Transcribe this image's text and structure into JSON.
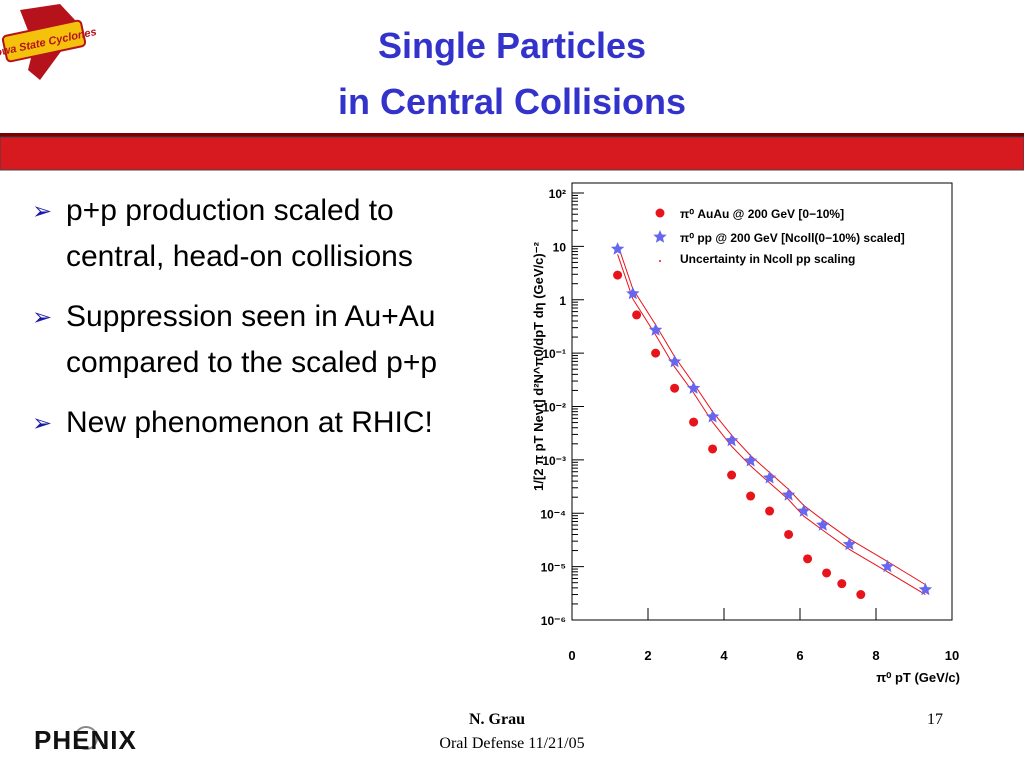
{
  "header": {
    "title_lines": [
      "Single Particles",
      "in Central Collisions"
    ],
    "logo": "Iowa State Cyclones"
  },
  "bullets": [
    "p+p production scaled to central, head-on collisions",
    "Suppression seen in Au+Au compared to the scaled p+p",
    "New phenomenon at RHIC!"
  ],
  "footer": {
    "author": "N. Grau",
    "event": "Oral Defense 11/21/05",
    "page": "17",
    "logo": "PHENIX"
  },
  "chart_data": {
    "type": "scatter",
    "xlabel": "π⁰ pT (GeV/c)",
    "ylabel": "1/[2 π pT Nevt] d²N^π0/dpT dη (GeV/c)⁻²",
    "xlim": [
      0,
      10
    ],
    "xticks": [
      0,
      2,
      4,
      6,
      8,
      10
    ],
    "ylim": [
      1e-06,
      100
    ],
    "ylog": true,
    "yticks": [
      {
        "value": 100,
        "label": "10²"
      },
      10,
      1,
      {
        "value": 0.1,
        "label": "10⁻¹"
      },
      {
        "value": 0.01,
        "label": "10⁻²"
      },
      {
        "value": 0.001,
        "label": "10⁻³"
      },
      {
        "value": 0.0001,
        "label": "10⁻⁴"
      },
      {
        "value": 1e-05,
        "label": "10⁻⁵"
      },
      {
        "value": 1e-06,
        "label": "10⁻⁶"
      }
    ],
    "series": [
      {
        "name": "π⁰ AuAu @ 200 GeV [0−10%]",
        "color": "#e8141b",
        "marker": "circle",
        "x": [
          1.2,
          1.7,
          2.2,
          2.7,
          3.2,
          3.7,
          4.2,
          4.7,
          5.2,
          5.7,
          6.2,
          6.7,
          7.1,
          7.6
        ],
        "values": [
          2.9,
          0.52,
          0.1,
          0.022,
          0.0051,
          0.0016,
          0.00052,
          0.00021,
          0.00011,
          4e-05,
          1.4e-05,
          7.6e-06,
          4.8e-06,
          3e-06
        ]
      },
      {
        "name": "π⁰ pp @ 200 GeV [Ncoll(0−10%) scaled]",
        "color": "#6666ee",
        "marker": "star",
        "x": [
          1.2,
          1.6,
          2.2,
          2.7,
          3.2,
          3.7,
          4.2,
          4.7,
          5.2,
          5.7,
          6.1,
          6.6,
          7.3,
          8.3,
          9.3
        ],
        "values": [
          8.9,
          1.3,
          0.27,
          0.069,
          0.022,
          0.0064,
          0.0023,
          0.00096,
          0.00046,
          0.00022,
          0.00011,
          6e-05,
          2.6e-05,
          1e-05,
          3.7e-06
        ]
      }
    ],
    "band": {
      "name": "Uncertainty in Ncoll pp scaling",
      "color": "#e8141b",
      "x": [
        1.2,
        1.6,
        2.2,
        2.7,
        3.2,
        3.7,
        4.2,
        4.7,
        5.2,
        5.7,
        6.1,
        6.6,
        7.3,
        8.3,
        9.3
      ],
      "upper": [
        11,
        1.6,
        0.34,
        0.086,
        0.027,
        0.008,
        0.0029,
        0.0012,
        0.00058,
        0.00028,
        0.00014,
        7.5e-05,
        3.3e-05,
        1.25e-05,
        4.6e-06
      ],
      "lower": [
        7.1,
        1.04,
        0.22,
        0.055,
        0.018,
        0.0051,
        0.0018,
        0.00077,
        0.00037,
        0.00018,
        8.8e-05,
        4.8e-05,
        2.1e-05,
        8e-06,
        3e-06
      ]
    }
  }
}
